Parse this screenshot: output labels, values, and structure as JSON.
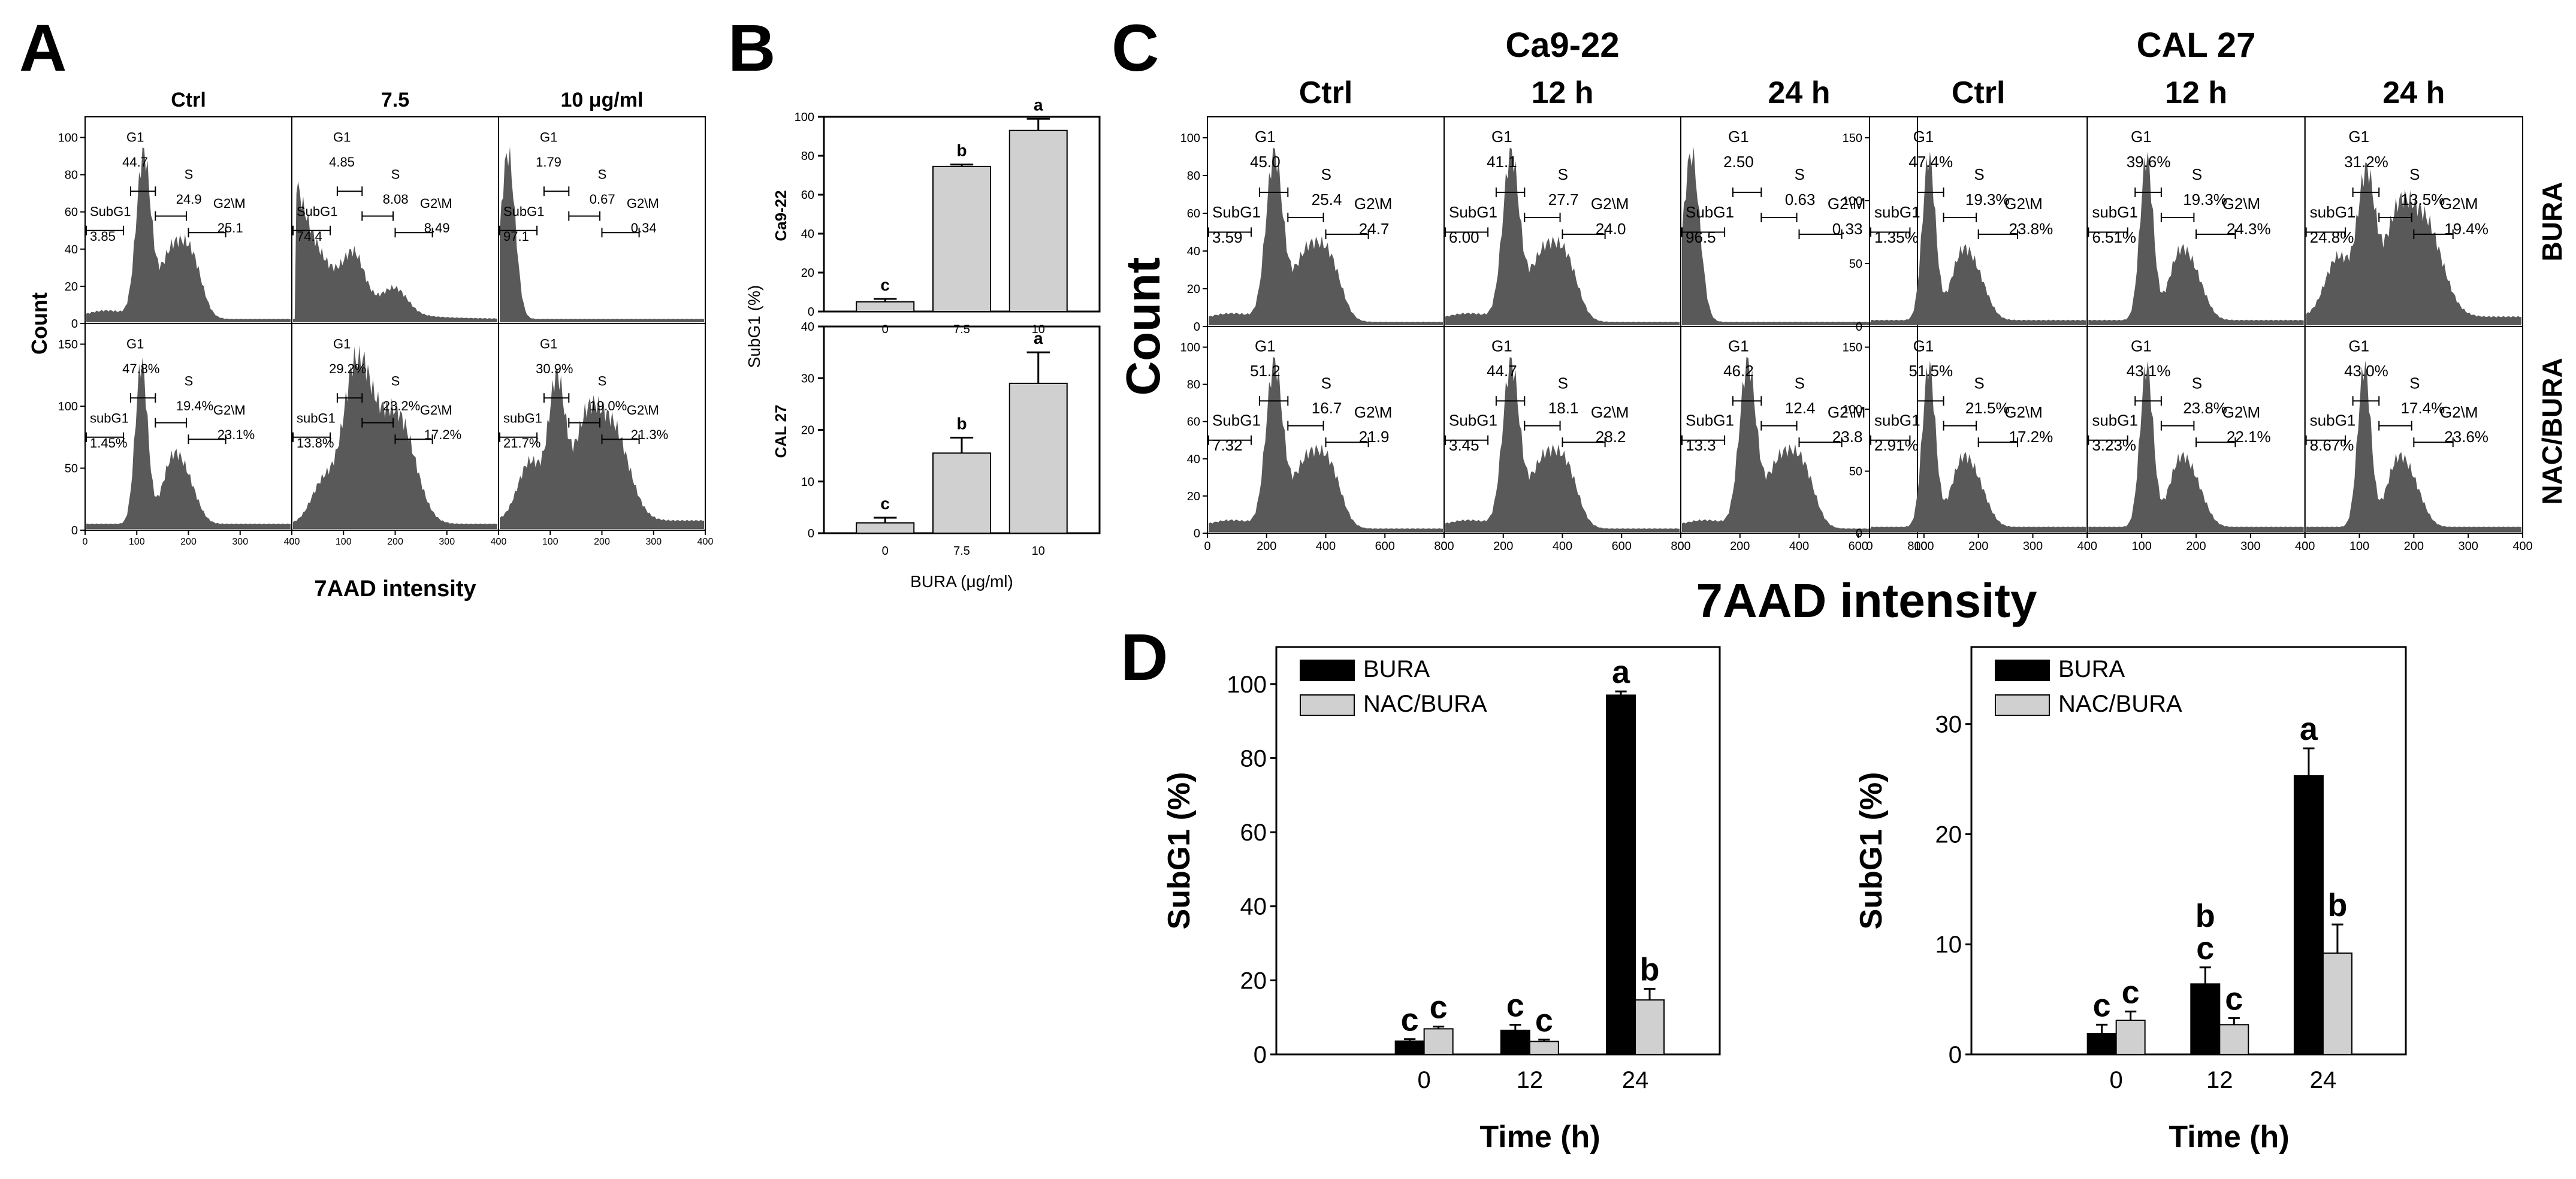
{
  "panel_labels": {
    "a": "A",
    "b": "B",
    "c": "C",
    "d": "D"
  },
  "colors": {
    "hist_fill": "#595959",
    "bar_dark": "#000000",
    "bar_light": "#d0d0d0",
    "axis": "#000000"
  },
  "panelA": {
    "columns": [
      "Ctrl",
      "7.5",
      "10 μg/ml"
    ],
    "ylabel": "Count",
    "xlabel": "7AAD intensity",
    "xticks": [
      "0",
      "100",
      "200",
      "300",
      "400"
    ],
    "yticks_top": [
      "0",
      "20",
      "40",
      "60",
      "80",
      "100"
    ],
    "yticks_bottom": [
      "0",
      "50",
      "100",
      "150"
    ],
    "rows": [
      [
        {
          "g1": "44.7",
          "s": "24.9",
          "g2m": "25.1",
          "subg1": "3.85",
          "subg1_name": "SubG1"
        },
        {
          "g1": "4.85",
          "s": "8.08",
          "g2m": "8.49",
          "subg1": "74.4",
          "subg1_name": "SubG1"
        },
        {
          "g1": "1.79",
          "s": "0.67",
          "g2m": "0.34",
          "subg1": "97.1",
          "subg1_name": "SubG1"
        }
      ],
      [
        {
          "g1": "47.8%",
          "s": "19.4%",
          "g2m": "23.1%",
          "subg1": "1.45%",
          "subg1_name": "subG1"
        },
        {
          "g1": "29.2%",
          "s": "23.2%",
          "g2m": "17.2%",
          "subg1": "13.8%",
          "subg1_name": "subG1"
        },
        {
          "g1": "30.9%",
          "s": "19.0%",
          "g2m": "21.3%",
          "subg1": "21.7%",
          "subg1_name": "subG1"
        }
      ]
    ]
  },
  "panelC": {
    "cell_lines": [
      "Ca9-22",
      "CAL 27"
    ],
    "columns": [
      "Ctrl",
      "12 h",
      "24 h"
    ],
    "row_labels": [
      "BURA",
      "NAC/BURA"
    ],
    "ylabel": "Count",
    "xlabel": "7AAD intensity",
    "xticks_ca922": [
      "0",
      "200",
      "400",
      "600",
      "800"
    ],
    "xticks_cal27": [
      "0",
      "100",
      "200",
      "300",
      "400"
    ],
    "yticks_ca922": [
      "0",
      "20",
      "40",
      "60",
      "80",
      "100"
    ],
    "yticks_cal27_top": [
      "0",
      "50",
      "100",
      "150"
    ],
    "yticks_cal27_bottom": [
      "0",
      "50",
      "100",
      "150"
    ],
    "ca922": [
      [
        {
          "g1": "45.0",
          "s": "25.4",
          "g2m": "24.7",
          "subg1": "3.59",
          "subg1_name": "SubG1"
        },
        {
          "g1": "41.1",
          "s": "27.7",
          "g2m": "24.0",
          "subg1": "6.00",
          "subg1_name": "SubG1"
        },
        {
          "g1": "2.50",
          "s": "0.63",
          "g2m": "0.33",
          "subg1": "96.5",
          "subg1_name": "SubG1"
        }
      ],
      [
        {
          "g1": "51.2",
          "s": "16.7",
          "g2m": "21.9",
          "subg1": "7.32",
          "subg1_name": "SubG1"
        },
        {
          "g1": "44.7",
          "s": "18.1",
          "g2m": "28.2",
          "subg1": "3.45",
          "subg1_name": "SubG1"
        },
        {
          "g1": "46.2",
          "s": "12.4",
          "g2m": "23.8",
          "subg1": "13.3",
          "subg1_name": "SubG1"
        }
      ]
    ],
    "cal27": [
      [
        {
          "g1": "47.4%",
          "s": "19.3%",
          "g2m": "23.8%",
          "subg1": "1.35%",
          "subg1_name": "subG1"
        },
        {
          "g1": "39.6%",
          "s": "19.3%",
          "g2m": "24.3%",
          "subg1": "6.51%",
          "subg1_name": "subG1"
        },
        {
          "g1": "31.2%",
          "s": "13.5%",
          "g2m": "19.4%",
          "subg1": "24.8%",
          "subg1_name": "subG1"
        }
      ],
      [
        {
          "g1": "51.5%",
          "s": "21.5%",
          "g2m": "17.2%",
          "subg1": "2.91%",
          "subg1_name": "subG1"
        },
        {
          "g1": "43.1%",
          "s": "23.8%",
          "g2m": "22.1%",
          "subg1": "3.23%",
          "subg1_name": "subG1"
        },
        {
          "g1": "43.0%",
          "s": "17.4%",
          "g2m": "23.6%",
          "subg1": "8.67%",
          "subg1_name": "subG1"
        }
      ]
    ]
  },
  "chart_data": [
    {
      "id": "B-top",
      "type": "bar",
      "title": "",
      "categories": [
        "0",
        "7.5",
        "10"
      ],
      "values": [
        5,
        74.5,
        93
      ],
      "errors": [
        1.5,
        1,
        6
      ],
      "letters": [
        "c",
        "b",
        "a"
      ],
      "ylabel": "Ca9-22",
      "ylim": [
        0,
        100
      ],
      "yticks": [
        0,
        20,
        40,
        60,
        80,
        100
      ],
      "xlabel": ""
    },
    {
      "id": "B-bottom",
      "type": "bar",
      "title": "",
      "categories": [
        "0",
        "7.5",
        "10"
      ],
      "values": [
        2,
        15.5,
        29
      ],
      "errors": [
        1,
        3,
        6
      ],
      "letters": [
        "c",
        "b",
        "a"
      ],
      "ylabel": "CAL 27",
      "ylim": [
        0,
        40
      ],
      "yticks": [
        0,
        10,
        20,
        30,
        40
      ],
      "xlabel": "BURA (μg/ml)",
      "shared_ylabel": "SubG1 (%)"
    },
    {
      "id": "D-left",
      "type": "bar",
      "title": "",
      "categories": [
        "0",
        "12",
        "24"
      ],
      "series": [
        {
          "name": "BURA",
          "values": [
            3.6,
            6.5,
            97
          ],
          "errors": [
            0.5,
            1.5,
            1
          ],
          "letters": [
            "c",
            "c",
            "a"
          ]
        },
        {
          "name": "NAC/BURA",
          "values": [
            6.9,
            3.5,
            14.7
          ],
          "errors": [
            0.6,
            0.5,
            3
          ],
          "letters": [
            "c",
            "c",
            "b"
          ]
        }
      ],
      "ylabel": "SubG1 (%)",
      "xlabel": "Time (h)",
      "ylim": [
        0,
        110
      ],
      "yticks": [
        0,
        20,
        40,
        60,
        80,
        100
      ],
      "legend": "top-left"
    },
    {
      "id": "D-right",
      "type": "bar",
      "title": "",
      "categories": [
        "0",
        "12",
        "24"
      ],
      "series": [
        {
          "name": "BURA",
          "values": [
            1.9,
            6.4,
            25.3
          ],
          "errors": [
            0.8,
            1.5,
            2.5
          ],
          "letters": [
            "c",
            "bc",
            "a"
          ]
        },
        {
          "name": "NAC/BURA",
          "values": [
            3.1,
            2.7,
            9.2
          ],
          "errors": [
            0.8,
            0.6,
            2.6
          ],
          "letters": [
            "c",
            "c",
            "b"
          ]
        }
      ],
      "ylabel": "SubG1 (%)",
      "xlabel": "Time (h)",
      "ylim": [
        0,
        37
      ],
      "yticks": [
        0,
        10,
        20,
        30
      ],
      "legend": "top-left"
    }
  ]
}
